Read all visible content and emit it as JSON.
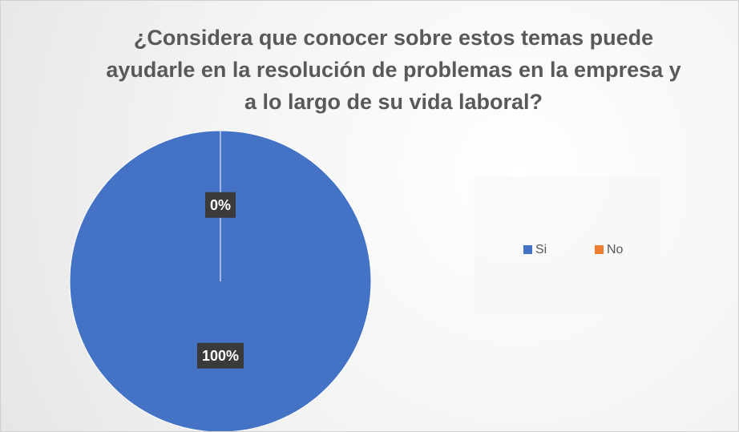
{
  "chart_data": {
    "type": "pie",
    "title": "¿Considera que conocer sobre estos temas puede ayudarle en la resolución de problemas en la empresa y a lo largo de su vida laboral?",
    "categories": [
      "Si",
      "No"
    ],
    "values": [
      100,
      0
    ],
    "value_labels": [
      "100%",
      "0%"
    ],
    "colors": [
      "#4472c4",
      "#ed7d31"
    ],
    "legend": "right"
  }
}
